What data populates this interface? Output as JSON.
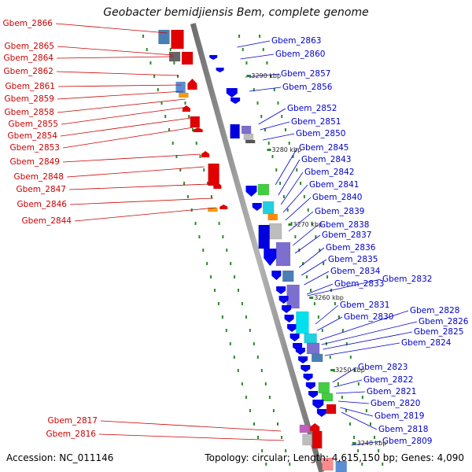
{
  "title": "Geobacter bemidjiensis Bem, complete genome",
  "footer": {
    "accession": "Accession: NC_011146",
    "summary": "Topology: circular; Length: 4,615,150 bp; Genes: 4,090"
  },
  "colors": {
    "left_label": "#cc0000",
    "right_label": "#0000cc",
    "leader_left": "#cc0000",
    "leader_right": "#0000cc",
    "backbone": "#8a8a8a",
    "ticks": "#2a8a2a"
  },
  "left_labels": [
    "Gbem_2866",
    "Gbem_2865",
    "Gbem_2864",
    "Gbem_2862",
    "Gbem_2861",
    "Gbem_2859",
    "Gbem_2858",
    "Gbem_2855",
    "Gbem_2854",
    "Gbem_2853",
    "Gbem_2849",
    "Gbem_2848",
    "Gbem_2847",
    "Gbem_2846",
    "Gbem_2844",
    "Gbem_2817",
    "Gbem_2816"
  ],
  "right_labels": [
    "Gbem_2863",
    "Gbem_2860",
    "Gbem_2857",
    "Gbem_2856",
    "Gbem_2852",
    "Gbem_2851",
    "Gbem_2850",
    "Gbem_2845",
    "Gbem_2843",
    "Gbem_2842",
    "Gbem_2841",
    "Gbem_2840",
    "Gbem_2839",
    "Gbem_2838",
    "Gbem_2837",
    "Gbem_2836",
    "Gbem_2835",
    "Gbem_2834",
    "Gbem_2833",
    "Gbem_2832",
    "Gbem_2831",
    "Gbem_2830",
    "Gbem_2828",
    "Gbem_2826",
    "Gbem_2825",
    "Gbem_2824",
    "Gbem_2823",
    "Gbem_2822",
    "Gbem_2821",
    "Gbem_2820",
    "Gbem_2819",
    "Gbem_2818",
    "Gbem_2809"
  ],
  "scale_ticks": [
    "3290 kbp",
    "3280 kbp",
    "3270 kbp",
    "3260 kbp",
    "3250 kbp",
    "3240 kbp"
  ]
}
